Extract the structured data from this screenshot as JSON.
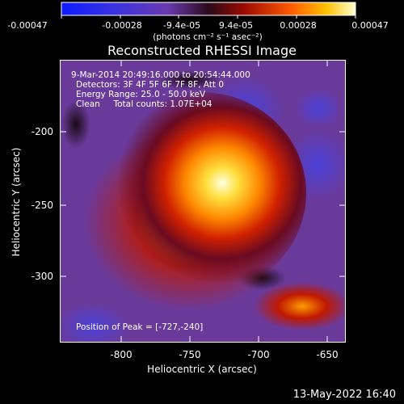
{
  "colorbar": {
    "ticks": [
      "-0.00047",
      "-0.00028",
      "-9.4e-05",
      "9.4e-05",
      "0.00028",
      "0.00047"
    ],
    "units": "(photons cm⁻² s⁻¹ asec⁻²)"
  },
  "title": "Reconstructed RHESSI Image",
  "info": {
    "time": "9-Mar-2014 20:49:16.000 to 20:54:44.000",
    "detectors": "Detectors: 3F 4F 5F 6F 7F 8F, Att 0",
    "energy": "Energy Range: 25.0 - 50.0 keV",
    "clean": "Clean     Total counts: 1.07E+04",
    "peak": "Position of Peak = [-727,-240]"
  },
  "axes": {
    "xlabel": "Heliocentric X (arcsec)",
    "ylabel": "Heliocentric Y (arcsec)",
    "xticks": [
      "-800",
      "-750",
      "-700",
      "-650"
    ],
    "yticks": [
      "-200",
      "-250",
      "-300"
    ]
  },
  "footer": {
    "timestamp": "13-May-2022 16:40"
  }
}
